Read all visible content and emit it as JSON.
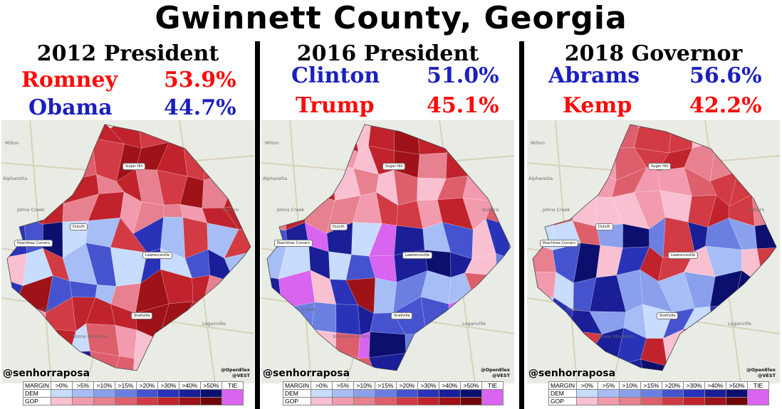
{
  "title": "Gwinnett County, Georgia",
  "panels": [
    {
      "heading": "2012 President",
      "candidates": [
        {
          "name": "Romney",
          "pct": "53.9%",
          "party": "GOP"
        },
        {
          "name": "Obama",
          "pct": "44.7%",
          "party": "DEM"
        }
      ]
    },
    {
      "heading": "2016 President",
      "candidates": [
        {
          "name": "Clinton",
          "pct": "51.0%",
          "party": "DEM"
        },
        {
          "name": "Trump",
          "pct": "45.1%",
          "party": "GOP"
        }
      ]
    },
    {
      "heading": "2018 Governor",
      "candidates": [
        {
          "name": "Abrams",
          "pct": "56.6%",
          "party": "DEM"
        },
        {
          "name": "Kemp",
          "pct": "42.2%",
          "party": "GOP"
        }
      ]
    }
  ],
  "credit": {
    "handle": "@senhorraposa",
    "source_1": "@OpenElex",
    "source_2": "@VEST"
  },
  "places": {
    "milton": "Milton",
    "alpharetta": "Alpharetta",
    "johns_creek": "Johns Creek",
    "tucker": "Tucker",
    "stone_mountain": "Stone Mountain",
    "auburn": "Auburn",
    "loganville": "Loganville",
    "decatur": "Decatur",
    "sugar_hill": "Sugar Hill",
    "duluth": "Duluth",
    "peachtree_corners": "Peachtree Corners",
    "lawrenceville": "Lawrenceville",
    "snellville": "Snellville"
  },
  "legend": {
    "header": "MARGIN",
    "bins": [
      ">0%",
      ">5%",
      ">10%",
      ">15%",
      ">20%",
      ">30%",
      ">40%",
      ">50%"
    ],
    "tie": "TIE",
    "dem_label": "DEM",
    "gop_label": "GOP",
    "dem_colors": [
      "#c7dcff",
      "#a6bdf5",
      "#8aa0ec",
      "#6a7fe0",
      "#4553cf",
      "#2a33b8",
      "#1a1f98",
      "#0c0f6e"
    ],
    "gop_colors": [
      "#f9c0d2",
      "#f29aae",
      "#e7808f",
      "#de5f6c",
      "#d23a44",
      "#c0232c",
      "#9e1218",
      "#6e0508"
    ],
    "tie_color": "#d864f0"
  }
}
